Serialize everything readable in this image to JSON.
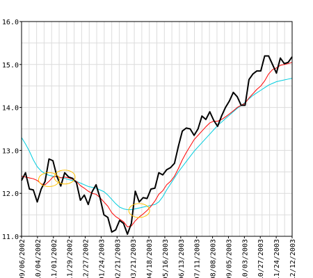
{
  "chart_data": {
    "type": "line",
    "title": "",
    "xlabel": "",
    "ylabel": "",
    "ylim": [
      11.0,
      16.0
    ],
    "y_ticks": [
      "16.0",
      "15.0",
      "14.0",
      "13.0",
      "12.0",
      "11.0"
    ],
    "x_ticks": [
      "09/06/2002",
      "10/04/2002",
      "11/01/2002",
      "11/29/2002",
      "12/27/2002",
      "01/24/2003",
      "02/21/2003",
      "03/21/2003",
      "04/18/2003",
      "05/16/2003",
      "06/13/2003",
      "07/11/2003",
      "08/08/2003",
      "09/05/2003",
      "10/03/2003",
      "10/27/2003",
      "11/24/2003",
      "12/12/2003"
    ],
    "grid": true,
    "legend": "none",
    "series": [
      {
        "style": "price",
        "color": "#000000",
        "values": [
          12.3,
          12.48,
          12.1,
          12.08,
          11.8,
          12.1,
          12.28,
          12.8,
          12.76,
          12.4,
          12.17,
          12.48,
          12.38,
          12.35,
          12.25,
          11.84,
          11.96,
          11.74,
          12.04,
          12.2,
          11.9,
          11.5,
          11.44,
          11.1,
          11.15,
          11.37,
          11.3,
          11.05,
          11.3,
          12.05,
          11.8,
          11.9,
          11.88,
          12.1,
          12.12,
          12.48,
          12.43,
          12.55,
          12.6,
          12.7,
          13.1,
          13.45,
          13.52,
          13.5,
          13.35,
          13.5,
          13.8,
          13.72,
          13.9,
          13.7,
          13.56,
          13.8,
          14.0,
          14.15,
          14.35,
          14.25,
          14.05,
          14.05,
          14.65,
          14.78,
          14.85,
          14.85,
          15.2,
          15.2,
          15.0,
          14.8,
          15.15,
          15.02,
          15.05,
          15.18
        ]
      },
      {
        "style": "short-ma",
        "color": "#ff0000",
        "values": [
          12.4,
          12.38,
          12.36,
          12.34,
          12.3,
          12.22,
          12.2,
          12.28,
          12.38,
          12.4,
          12.36,
          12.38,
          12.36,
          12.33,
          12.28,
          12.18,
          12.12,
          12.05,
          12.0,
          11.98,
          11.9,
          11.8,
          11.7,
          11.55,
          11.46,
          11.4,
          11.34,
          11.22,
          11.24,
          11.36,
          11.45,
          11.52,
          11.6,
          11.7,
          11.82,
          11.98,
          12.06,
          12.2,
          12.28,
          12.4,
          12.58,
          12.78,
          12.95,
          13.1,
          13.25,
          13.35,
          13.45,
          13.55,
          13.64,
          13.68,
          13.68,
          13.72,
          13.78,
          13.85,
          13.92,
          14.0,
          14.05,
          14.1,
          14.22,
          14.32,
          14.42,
          14.5,
          14.62,
          14.78,
          14.88,
          14.92,
          14.98,
          15.0,
          15.02,
          15.05
        ]
      },
      {
        "style": "long-ma",
        "color": "#00ccdd",
        "values": [
          13.3,
          13.15,
          12.98,
          12.78,
          12.62,
          12.52,
          12.46,
          12.42,
          12.4,
          12.38,
          12.37,
          12.35,
          12.32,
          12.3,
          12.28,
          12.24,
          12.2,
          12.16,
          12.14,
          12.12,
          12.08,
          12.04,
          11.96,
          11.86,
          11.76,
          11.68,
          11.64,
          11.62,
          11.62,
          11.64,
          11.66,
          11.68,
          11.7,
          11.72,
          11.74,
          11.8,
          11.92,
          12.08,
          12.22,
          12.36,
          12.5,
          12.62,
          12.74,
          12.86,
          12.98,
          13.08,
          13.18,
          13.28,
          13.38,
          13.48,
          13.58,
          13.66,
          13.74,
          13.82,
          13.9,
          13.98,
          14.04,
          14.12,
          14.2,
          14.28,
          14.34,
          14.4,
          14.46,
          14.52,
          14.56,
          14.6,
          14.62,
          14.64,
          14.66,
          14.68
        ]
      }
    ],
    "annotations": [
      {
        "shape": "ellipse",
        "color": "#ffc000",
        "x_index": 7,
        "y": 12.32
      },
      {
        "shape": "ellipse",
        "color": "#ffc000",
        "x_index": 11,
        "y": 12.38
      },
      {
        "shape": "ellipse",
        "color": "#ffc000",
        "x_index": 30,
        "y": 11.6
      }
    ]
  }
}
